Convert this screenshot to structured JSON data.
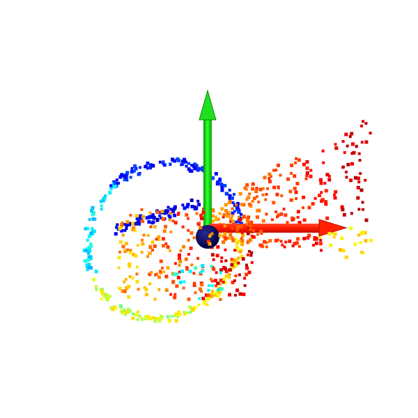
{
  "viewer": {
    "background": "#ffffff",
    "colormap": "jet",
    "point_count": 900
  },
  "axes": {
    "x_axis": {
      "direction": "right",
      "color": "#ff1a00"
    },
    "y_axis": {
      "direction": "up",
      "color": "#00d400"
    },
    "z_axis": {
      "direction": "toward-viewer",
      "color": "#000066"
    },
    "origin_marker": {
      "shape": "sphere",
      "color": "#000066"
    }
  }
}
